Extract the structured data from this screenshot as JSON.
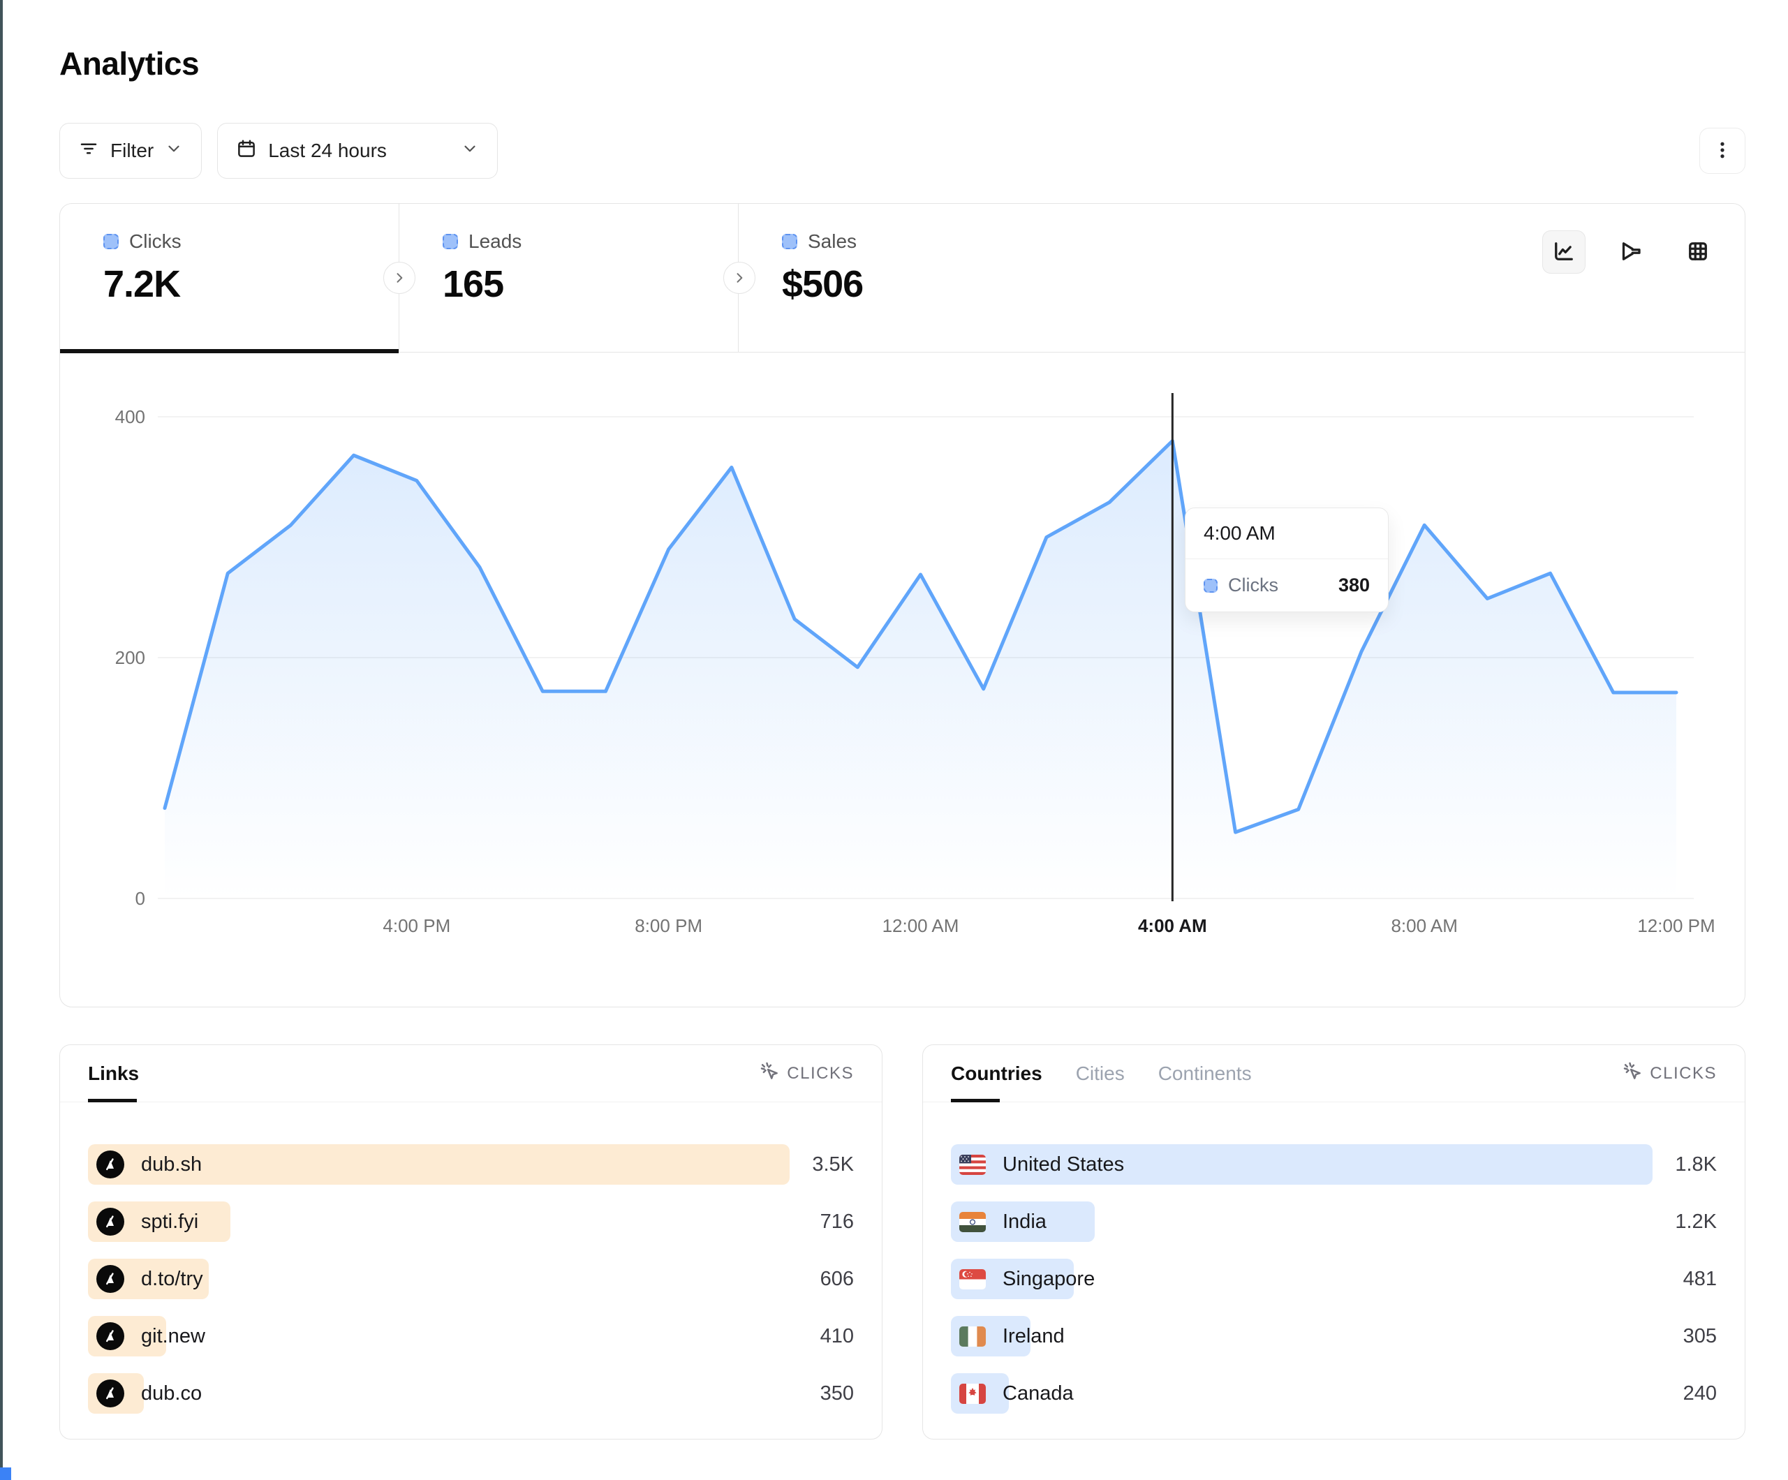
{
  "page": {
    "title": "Analytics"
  },
  "toolbar": {
    "filter_label": "Filter",
    "date_range_label": "Last 24 hours",
    "filter_icon": "filter-lines-icon",
    "date_icon": "calendar-icon",
    "menu_icon": "kebab-menu-icon"
  },
  "stats": {
    "tabs": [
      {
        "label": "Clicks",
        "value": "7.2K",
        "active": true
      },
      {
        "label": "Leads",
        "value": "165",
        "active": false
      },
      {
        "label": "Sales",
        "value": "$506",
        "active": false
      }
    ]
  },
  "view_switcher": {
    "options": [
      "line-chart",
      "funnel-chart",
      "table-grid"
    ],
    "active": "line-chart"
  },
  "chart_data": {
    "type": "area",
    "title": "Clicks over last 24 hours",
    "x_hours": [
      "12:00 PM",
      "1:00 PM",
      "2:00 PM",
      "3:00 PM",
      "4:00 PM",
      "5:00 PM",
      "6:00 PM",
      "7:00 PM",
      "8:00 PM",
      "9:00 PM",
      "10:00 PM",
      "11:00 PM",
      "12:00 AM",
      "1:00 AM",
      "2:00 AM",
      "3:00 AM",
      "4:00 AM",
      "5:00 AM",
      "6:00 AM",
      "7:00 AM",
      "8:00 AM",
      "9:00 AM",
      "10:00 AM",
      "11:00 AM",
      "12:00 PM"
    ],
    "series": [
      {
        "name": "Clicks",
        "values": [
          75,
          270,
          310,
          368,
          347,
          275,
          172,
          172,
          290,
          358,
          232,
          192,
          269,
          174,
          300,
          329,
          380,
          55,
          74,
          205,
          310,
          249,
          270,
          171,
          171
        ]
      }
    ],
    "y_ticks": [
      0,
      200,
      400
    ],
    "ylim": [
      0,
      430
    ],
    "x_ticks": [
      {
        "hour": 4,
        "label": "4:00 PM",
        "emphasis": false
      },
      {
        "hour": 8,
        "label": "8:00 PM",
        "emphasis": false
      },
      {
        "hour": 12,
        "label": "12:00 AM",
        "emphasis": false
      },
      {
        "hour": 16,
        "label": "4:00 AM",
        "emphasis": true
      },
      {
        "hour": 20,
        "label": "8:00 AM",
        "emphasis": false
      },
      {
        "hour": 24,
        "label": "12:00 PM",
        "emphasis": false
      }
    ],
    "grid": "horizontal",
    "crosshair_hour": 16,
    "line_color": "#60a5fa",
    "area_top_color": "rgba(96,165,250,0.22)",
    "area_bottom_color": "rgba(96,165,250,0)"
  },
  "tooltip": {
    "title": "4:00 AM",
    "series_label": "Clicks",
    "value": "380"
  },
  "links_panel": {
    "title": "Links",
    "metric_label": "CLICKS",
    "metric_icon": "cursor-click-icon",
    "bar_color": "#fdebd3",
    "rows": [
      {
        "label": "dub.sh",
        "value": "3.5K",
        "bar_pct": 100
      },
      {
        "label": "spti.fyi",
        "value": "716",
        "bar_pct": 20.3
      },
      {
        "label": "d.to/try",
        "value": "606",
        "bar_pct": 17.2
      },
      {
        "label": "git.new",
        "value": "410",
        "bar_pct": 11.1
      },
      {
        "label": "dub.co",
        "value": "350",
        "bar_pct": 8.0
      }
    ]
  },
  "countries_panel": {
    "tabs": [
      "Countries",
      "Cities",
      "Continents"
    ],
    "active_tab": "Countries",
    "metric_label": "CLICKS",
    "metric_icon": "cursor-click-icon",
    "bar_color": "#dbe9fd",
    "rows": [
      {
        "label": "United States",
        "value": "1.8K",
        "bar_pct": 100,
        "flag": "us"
      },
      {
        "label": "India",
        "value": "1.2K",
        "bar_pct": 20.5,
        "flag": "in"
      },
      {
        "label": "Singapore",
        "value": "481",
        "bar_pct": 17.5,
        "flag": "sg"
      },
      {
        "label": "Ireland",
        "value": "305",
        "bar_pct": 11.3,
        "flag": "ie"
      },
      {
        "label": "Canada",
        "value": "240",
        "bar_pct": 8.3,
        "flag": "ca"
      }
    ]
  },
  "colors": {
    "text_primary": "#0a0a0a",
    "text_secondary": "#525252",
    "text_muted": "#9ca3af",
    "border": "#e5e5e5",
    "gridline": "#ededed",
    "axis_text": "#737373",
    "crosshair": "#262626",
    "swatch_fill": "#9ec1fa",
    "swatch_border": "#5e93f0",
    "edge_strip": "#41545a",
    "corner_chip": "#3b82f6"
  }
}
